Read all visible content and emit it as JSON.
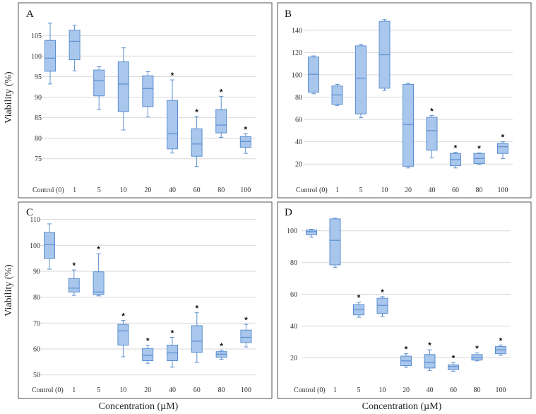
{
  "figure": {
    "y_axis_label": "Viability (%)",
    "x_axis_label": "Concentration (µM)"
  },
  "colors": {
    "box_fill": "#a9c6ec",
    "box_stroke": "#5b8fd0",
    "grid": "#d9d9d9",
    "frame": "#555555"
  },
  "chart_data": [
    {
      "type": "box",
      "panel": "A",
      "categories": [
        "Control (0)",
        "1",
        "5",
        "10",
        "20",
        "40",
        "60",
        "80",
        "100"
      ],
      "ylim": [
        71,
        109
      ],
      "yticks": [
        75,
        80,
        85,
        90,
        95,
        100,
        105
      ],
      "ylabel": "Viability (%)",
      "xlabel": "Concentration (µM)",
      "grid": true,
      "boxes": [
        {
          "min": 93.2,
          "q1": 96.3,
          "median": 99.5,
          "q3": 103.8,
          "max": 108.0,
          "sig": ""
        },
        {
          "min": 96.4,
          "q1": 99.1,
          "median": 103.6,
          "q3": 106.3,
          "max": 107.5,
          "sig": ""
        },
        {
          "min": 87.0,
          "q1": 90.3,
          "median": 94.0,
          "q3": 96.6,
          "max": 97.4,
          "sig": ""
        },
        {
          "min": 82.0,
          "q1": 86.5,
          "median": 93.2,
          "q3": 98.6,
          "max": 102.0,
          "sig": ""
        },
        {
          "min": 85.2,
          "q1": 87.7,
          "median": 92.1,
          "q3": 95.2,
          "max": 96.2,
          "sig": ""
        },
        {
          "min": 76.4,
          "q1": 77.4,
          "median": 81.1,
          "q3": 89.2,
          "max": 94.2,
          "sig": "*"
        },
        {
          "min": 73.1,
          "q1": 75.6,
          "median": 78.6,
          "q3": 82.3,
          "max": 85.3,
          "sig": "*"
        },
        {
          "min": 80.2,
          "q1": 81.3,
          "median": 83.2,
          "q3": 87.0,
          "max": 90.2,
          "sig": "*"
        },
        {
          "min": 76.3,
          "q1": 77.8,
          "median": 79.2,
          "q3": 80.4,
          "max": 81.1,
          "sig": "*"
        }
      ]
    },
    {
      "type": "box",
      "panel": "B",
      "categories": [
        "Control (0)",
        "1",
        "5",
        "10",
        "20",
        "40",
        "60",
        "80",
        "100"
      ],
      "ylim": [
        10,
        150
      ],
      "yticks": [
        20,
        40,
        60,
        80,
        100,
        120,
        140
      ],
      "ylabel": "Viability (%)",
      "xlabel": "Concentration (µM)",
      "grid": true,
      "boxes": [
        {
          "min": 83.0,
          "q1": 84.5,
          "median": 100.5,
          "q3": 116.0,
          "max": 117.0,
          "sig": ""
        },
        {
          "min": 72.5,
          "q1": 73.5,
          "median": 82.0,
          "q3": 90.0,
          "max": 91.5,
          "sig": ""
        },
        {
          "min": 61.5,
          "q1": 65.0,
          "median": 97.0,
          "q3": 126.0,
          "max": 127.5,
          "sig": ""
        },
        {
          "min": 86.0,
          "q1": 88.0,
          "median": 118.0,
          "q3": 148.0,
          "max": 149.5,
          "sig": ""
        },
        {
          "min": 16.5,
          "q1": 18.0,
          "median": 55.5,
          "q3": 91.5,
          "max": 92.5,
          "sig": ""
        },
        {
          "min": 25.5,
          "q1": 32.5,
          "median": 50.0,
          "q3": 62.0,
          "max": 63.5,
          "sig": "*"
        },
        {
          "min": 16.5,
          "q1": 18.5,
          "median": 24.0,
          "q3": 29.5,
          "max": 30.5,
          "sig": "*"
        },
        {
          "min": 19.5,
          "q1": 20.5,
          "median": 25.0,
          "q3": 29.5,
          "max": 30.0,
          "sig": "*"
        },
        {
          "min": 25.0,
          "q1": 29.5,
          "median": 35.5,
          "q3": 38.5,
          "max": 40.0,
          "sig": "*"
        }
      ]
    },
    {
      "type": "box",
      "panel": "C",
      "categories": [
        "Control (0)",
        "1",
        "5",
        "10",
        "20",
        "40",
        "60",
        "80",
        "100"
      ],
      "ylim": [
        48,
        111
      ],
      "yticks": [
        50,
        60,
        70,
        80,
        90,
        100,
        110
      ],
      "ylabel": "Viability (%)",
      "xlabel": "Concentration (µM)",
      "grid": true,
      "boxes": [
        {
          "min": 90.8,
          "q1": 95.0,
          "median": 100.3,
          "q3": 105.0,
          "max": 108.3,
          "sig": ""
        },
        {
          "min": 80.7,
          "q1": 82.0,
          "median": 83.5,
          "q3": 87.2,
          "max": 90.5,
          "sig": "*"
        },
        {
          "min": 80.5,
          "q1": 81.0,
          "median": 82.0,
          "q3": 89.8,
          "max": 96.8,
          "sig": "*"
        },
        {
          "min": 57.0,
          "q1": 61.5,
          "median": 67.0,
          "q3": 69.5,
          "max": 71.0,
          "sig": "*"
        },
        {
          "min": 54.5,
          "q1": 55.5,
          "median": 57.5,
          "q3": 60.2,
          "max": 61.5,
          "sig": "*"
        },
        {
          "min": 53.0,
          "q1": 55.5,
          "median": 58.5,
          "q3": 61.5,
          "max": 64.5,
          "sig": "*"
        },
        {
          "min": 54.8,
          "q1": 58.7,
          "median": 63.0,
          "q3": 69.0,
          "max": 74.0,
          "sig": "*"
        },
        {
          "min": 56.0,
          "q1": 56.8,
          "median": 58.0,
          "q3": 59.0,
          "max": 59.5,
          "sig": "*"
        },
        {
          "min": 60.8,
          "q1": 62.5,
          "median": 64.5,
          "q3": 67.3,
          "max": 69.5,
          "sig": "*"
        }
      ]
    },
    {
      "type": "box",
      "panel": "D",
      "categories": [
        "Control (0)",
        "1",
        "5",
        "10",
        "20",
        "40",
        "60",
        "80",
        "100"
      ],
      "ylim": [
        5,
        107
      ],
      "yticks": [
        20,
        40,
        60,
        80,
        100
      ],
      "ylabel": "Viability (%)",
      "xlabel": "Concentration (µM)",
      "grid": true,
      "boxes": [
        {
          "min": 96.0,
          "q1": 97.5,
          "median": 99.5,
          "q3": 100.5,
          "max": 101.0,
          "sig": ""
        },
        {
          "min": 77.0,
          "q1": 78.5,
          "median": 94.0,
          "q3": 107.5,
          "max": 108.0,
          "sig": ""
        },
        {
          "min": 45.5,
          "q1": 47.0,
          "median": 50.5,
          "q3": 53.5,
          "max": 55.0,
          "sig": "*"
        },
        {
          "min": 46.0,
          "q1": 48.0,
          "median": 53.0,
          "q3": 57.5,
          "max": 58.5,
          "sig": "*"
        },
        {
          "min": 14.0,
          "q1": 15.0,
          "median": 18.0,
          "q3": 21.0,
          "max": 22.5,
          "sig": "*"
        },
        {
          "min": 12.0,
          "q1": 13.5,
          "median": 17.0,
          "q3": 22.0,
          "max": 25.0,
          "sig": "*"
        },
        {
          "min": 11.5,
          "q1": 12.5,
          "median": 14.5,
          "q3": 15.5,
          "max": 17.0,
          "sig": "*"
        },
        {
          "min": 18.0,
          "q1": 18.5,
          "median": 20.0,
          "q3": 22.0,
          "max": 23.0,
          "sig": "*"
        },
        {
          "min": 21.5,
          "q1": 22.5,
          "median": 25.0,
          "q3": 27.0,
          "max": 28.0,
          "sig": "*"
        }
      ]
    }
  ]
}
